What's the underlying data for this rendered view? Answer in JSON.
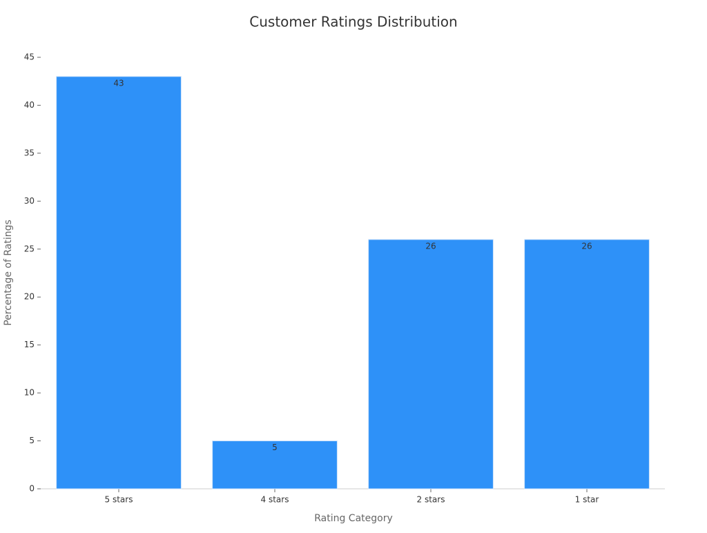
{
  "chart_data": {
    "type": "bar",
    "title": "Customer Ratings Distribution",
    "x_label": "Rating Category",
    "y_label": "Percentage of Ratings",
    "categories": [
      "5 stars",
      "4 stars",
      "2 stars",
      "1 star"
    ],
    "values": [
      43,
      5,
      26,
      26
    ],
    "color": "#2e91f8",
    "ylim": [
      0,
      45
    ],
    "yticks": [
      0,
      5,
      10,
      15,
      20,
      25,
      30,
      35,
      40,
      45
    ],
    "grid": false
  }
}
